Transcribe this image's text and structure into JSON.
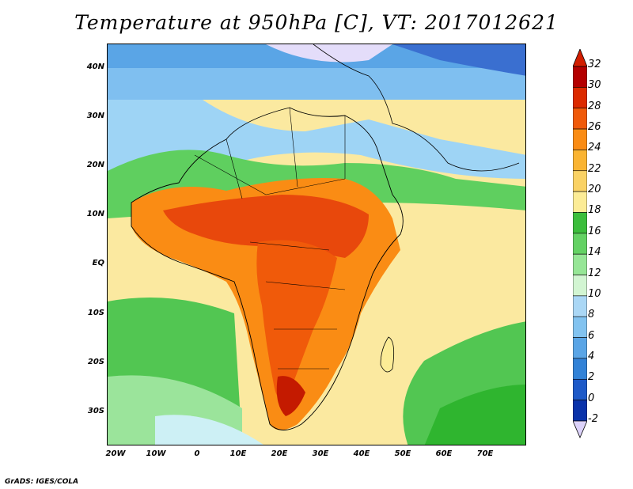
{
  "title": "Temperature at 950hPa [C], VT: 2017012621",
  "credit": "GrADS: IGES/COLA",
  "axes": {
    "lat_labels": [
      "40N",
      "30N",
      "20N",
      "10N",
      "EQ",
      "10S",
      "20S",
      "30S"
    ],
    "lat_values": [
      40,
      30,
      20,
      10,
      0,
      -10,
      -20,
      -30
    ],
    "lon_labels": [
      "20W",
      "10W",
      "0",
      "10E",
      "20E",
      "30E",
      "40E",
      "50E",
      "60E",
      "70E"
    ],
    "lon_values": [
      -20,
      -10,
      0,
      10,
      20,
      30,
      40,
      50,
      60,
      70
    ],
    "lon_range": [
      -22,
      80
    ],
    "lat_range": [
      -37,
      45
    ]
  },
  "colorbar": {
    "labels": [
      "32",
      "30",
      "28",
      "26",
      "24",
      "22",
      "20",
      "18",
      "16",
      "14",
      "12",
      "10",
      "8",
      "6",
      "4",
      "2",
      "0",
      "-2"
    ],
    "colors": [
      "#b40000",
      "#dc2a00",
      "#f05a0a",
      "#fa8c14",
      "#fab432",
      "#fad264",
      "#fcec96",
      "#3cbe3c",
      "#64d264",
      "#96e696",
      "#d2f5d2",
      "#aad7f5",
      "#82c3f0",
      "#5aa5e6",
      "#3282d7",
      "#1e5ac8",
      "#0a32aa"
    ],
    "top_arrow_color": "#d21e00",
    "bottom_arrow_color": "#dcd2fa"
  }
}
